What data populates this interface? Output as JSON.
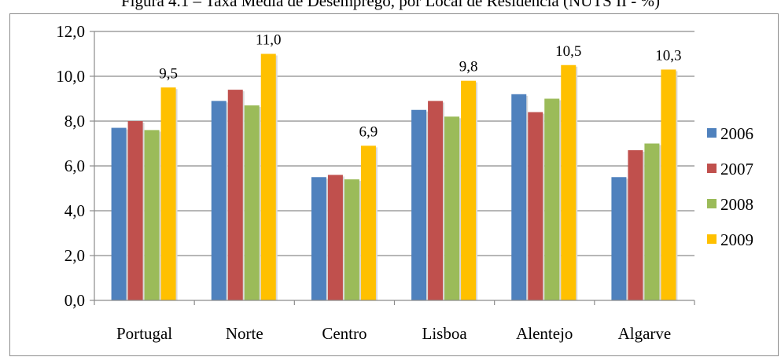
{
  "figure_caption": "Figura 4.1 – Taxa Média de Desemprego, por Local de Residência (NUTS II - %)",
  "chart_data": {
    "type": "bar",
    "categories": [
      "Portugal",
      "Norte",
      "Centro",
      "Lisboa",
      "Alentejo",
      "Algarve"
    ],
    "series": [
      {
        "name": "2006",
        "color": "#4f81bd",
        "values": [
          7.7,
          8.9,
          5.5,
          8.5,
          9.2,
          5.5
        ]
      },
      {
        "name": "2007",
        "color": "#c0504d",
        "values": [
          8.0,
          9.4,
          5.6,
          8.9,
          8.4,
          6.7
        ]
      },
      {
        "name": "2008",
        "color": "#9bbb59",
        "values": [
          7.6,
          8.7,
          5.4,
          8.2,
          9.0,
          7.0
        ]
      },
      {
        "name": "2009",
        "color": "#ffc000",
        "values": [
          9.5,
          11.0,
          6.9,
          9.8,
          10.5,
          10.3
        ]
      }
    ],
    "data_labels": {
      "series": "2009",
      "text": [
        "9,5",
        "11,0",
        "6,9",
        "9,8",
        "10,5",
        "10,3"
      ]
    },
    "yticks": [
      "0,0",
      "2,0",
      "4,0",
      "6,0",
      "8,0",
      "10,0",
      "12,0"
    ],
    "ylim": [
      0,
      12
    ],
    "grid": true,
    "legend": "right",
    "title": "",
    "xlabel": "",
    "ylabel": ""
  }
}
